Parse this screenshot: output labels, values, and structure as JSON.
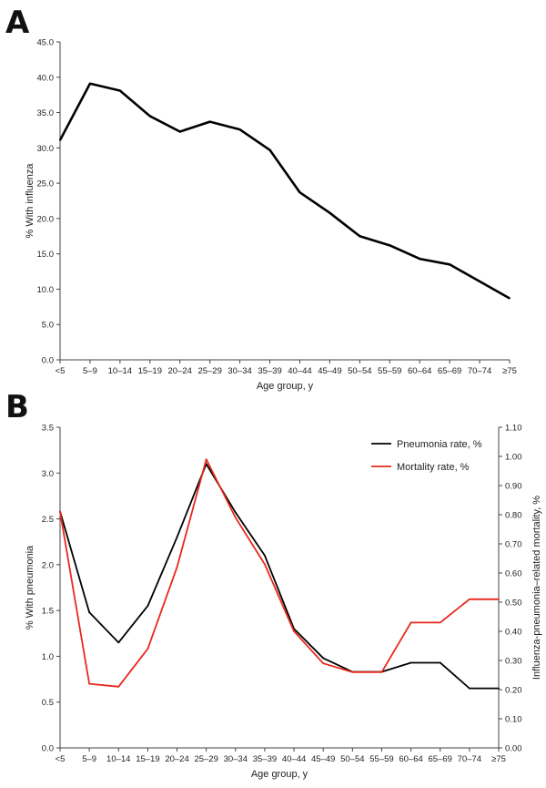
{
  "panels": {
    "a_label": "A",
    "b_label": "B"
  },
  "chart_data": [
    {
      "type": "line",
      "panel": "A",
      "categories": [
        "<5",
        "5–9",
        "10–14",
        "15–19",
        "20–24",
        "25–29",
        "30–34",
        "35–39",
        "40–44",
        "45–49",
        "50–54",
        "55–59",
        "60–64",
        "65–69",
        "70–74",
        "≥75"
      ],
      "series": [
        {
          "values": [
            31.1,
            39.1,
            38.1,
            34.5,
            32.3,
            33.7,
            32.6,
            29.7,
            23.7,
            20.8,
            17.5,
            16.2,
            14.3,
            13.5,
            11.1,
            8.7
          ],
          "color": "#000000"
        }
      ],
      "xlabel": "Age group, y",
      "ylabel": "% With influenza",
      "ylim": [
        0,
        45
      ],
      "yticks": [
        "0.0",
        "5.0",
        "10.0",
        "15.0",
        "20.0",
        "25.0",
        "30.0",
        "35.0",
        "40.0",
        "45.0"
      ],
      "grid": false,
      "legend": "none"
    },
    {
      "type": "line",
      "panel": "B",
      "categories": [
        "<5",
        "5–9",
        "10–14",
        "15–19",
        "20–24",
        "25–29",
        "30–34",
        "35–39",
        "40–44",
        "45–49",
        "50–54",
        "55–59",
        "60–64",
        "65–69",
        "70–74",
        "≥75"
      ],
      "series": [
        {
          "name": "Pneumonia rate, %",
          "axis": "left",
          "color": "#000000",
          "values": [
            2.58,
            1.48,
            1.15,
            1.55,
            2.3,
            3.1,
            2.57,
            2.1,
            1.3,
            0.98,
            0.83,
            0.83,
            0.93,
            0.93,
            0.65,
            0.65
          ]
        },
        {
          "name": "Mortality rate, %",
          "axis": "right",
          "color": "#e8281e",
          "values": [
            0.81,
            0.22,
            0.21,
            0.34,
            0.62,
            0.99,
            0.79,
            0.63,
            0.4,
            0.29,
            0.26,
            0.26,
            0.43,
            0.43,
            0.51,
            0.51
          ]
        }
      ],
      "xlabel": "Age group, y",
      "ylabel": "% With pneumonia",
      "ylabel_right": "Influenza-pneumonia–related mortality, %",
      "ylim": [
        0,
        3.5
      ],
      "ylim_right": [
        0,
        1.1
      ],
      "yticks": [
        "0.0",
        "0.5",
        "1.0",
        "1.5",
        "2.0",
        "2.5",
        "3.0",
        "3.5"
      ],
      "yticks_right": [
        "0.00",
        "0.10",
        "0.20",
        "0.30",
        "0.40",
        "0.50",
        "0.60",
        "0.70",
        "0.80",
        "0.90",
        "1.00",
        "1.10"
      ],
      "grid": false,
      "legend": "top-right"
    }
  ]
}
